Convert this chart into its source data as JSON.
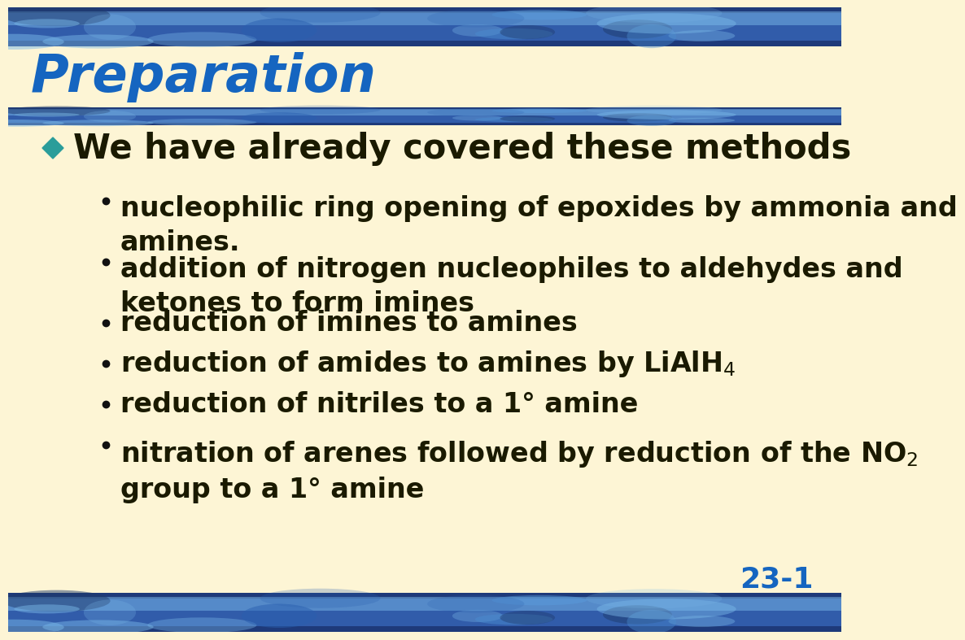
{
  "title": "Preparation",
  "title_color": "#1565c0",
  "title_font_size": 46,
  "bg_color": "#fdf5d5",
  "bullet_diamond_color": "#2a9d9a",
  "text_color": "#1a1a00",
  "main_bullet": "We have already covered these methods",
  "main_bullet_size": 30,
  "sub_bullets": [
    "nucleophilic ring opening of epoxides by ammonia and\namines.",
    "addition of nitrogen nucleophiles to aldehydes and\nketones to form imines",
    "reduction of imines to amines",
    "reduction of amides to amines by LiAlH$_4$",
    "reduction of nitriles to a 1° amine",
    "nitration of arenes followed by reduction of the NO$_2$\ngroup to a 1° amine"
  ],
  "sub_bullet_size": 24,
  "page_number": "23-1",
  "page_number_color": "#1565c0",
  "page_number_size": 26,
  "bar_dark": "#1e3a7a",
  "bar_mid": "#3a6bbf",
  "bar_light": "#7ab8e8"
}
